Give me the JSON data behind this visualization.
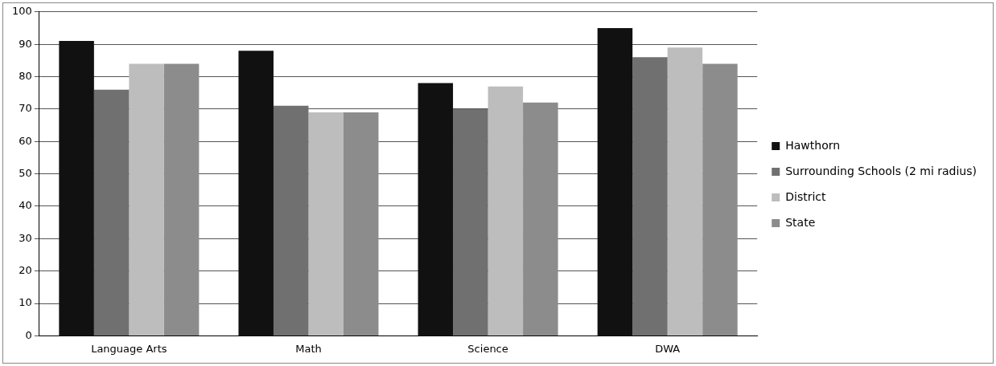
{
  "chart_data": {
    "type": "bar",
    "categories": [
      "Language Arts",
      "Math",
      "Science",
      "DWA"
    ],
    "series": [
      {
        "name": "Hawthorn",
        "color": "#111111",
        "values": [
          91,
          88,
          78,
          95
        ]
      },
      {
        "name": "Surrounding Schools (2 mi radius)",
        "color": "#707070",
        "values": [
          76,
          71,
          70,
          86
        ]
      },
      {
        "name": "District",
        "color": "#bdbdbd",
        "values": [
          84,
          69,
          77,
          89
        ]
      },
      {
        "name": "State",
        "color": "#8c8c8c",
        "values": [
          84,
          69,
          72,
          84
        ]
      }
    ],
    "ylim": [
      0,
      100
    ],
    "yticks": [
      0,
      10,
      20,
      30,
      40,
      50,
      60,
      70,
      80,
      90,
      100
    ],
    "grid": "y",
    "legend": "right"
  }
}
